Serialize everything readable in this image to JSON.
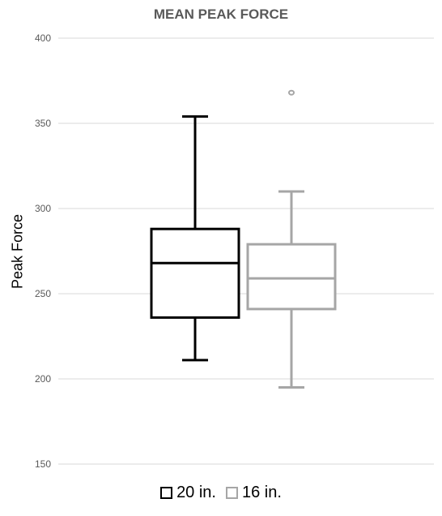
{
  "chart_data": {
    "type": "boxplot",
    "title": "MEAN PEAK FORCE",
    "xlabel": "",
    "ylabel": "Peak Force",
    "ylim": [
      150,
      400
    ],
    "yticks": [
      150,
      200,
      250,
      300,
      350,
      400
    ],
    "grid": true,
    "legend_position": "bottom",
    "series": [
      {
        "name": "20 in.",
        "color": "#000000",
        "min": 211,
        "q1": 236,
        "median": 268,
        "q3": 288,
        "max": 354,
        "outliers": []
      },
      {
        "name": "16 in.",
        "color": "#a6a6a6",
        "min": 195,
        "q1": 241,
        "median": 259,
        "q3": 279,
        "max": 310,
        "outliers": [
          368
        ]
      }
    ]
  }
}
